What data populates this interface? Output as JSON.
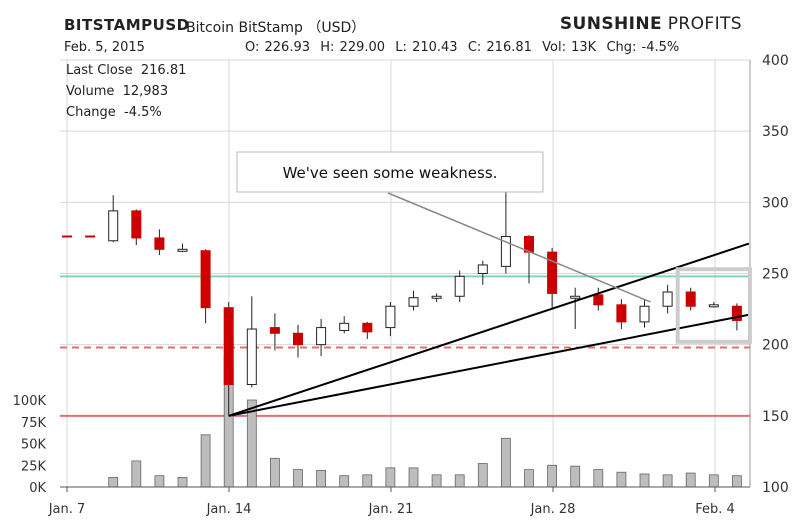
{
  "header": {
    "symbol": "BITSTAMPUSD",
    "description": "Bitcoin BitStamp （USD）",
    "brand_bold": "SUNSHINE",
    "brand_rest": "PROFITS",
    "date": "Feb. 5, 2015",
    "ohlc_line": "O: 226.93  H: 229.00  L: 210.43  C: 216.81  Vol: 13K  Chg: -4.5%"
  },
  "stats": {
    "last_close": "Last Close  216.81",
    "volume": "Volume  12,983",
    "change": "Change  -4.5%"
  },
  "annotation": "We've  seen  some  weakness.",
  "colors": {
    "up_fill": "#ffffff",
    "down_fill": "#cc0000",
    "candle_outline": "#222222",
    "volume_bar": "#bdbdbd",
    "resistance_green": "#7dd8b0",
    "support_red": "#e07070",
    "grid": "#d8d8d8",
    "highlight_box": "#cccccc"
  },
  "chart_data": {
    "type": "candlestick",
    "title": "BITSTAMPUSD Bitcoin BitStamp (USD)",
    "price_axis": {
      "ylim": [
        100,
        400
      ],
      "ticks": [
        100,
        150,
        200,
        250,
        300,
        350,
        400
      ]
    },
    "volume_axis": {
      "ylim": [
        0,
        125
      ],
      "ticks": [
        0,
        25,
        50,
        75,
        100
      ],
      "tick_labels": [
        "0K",
        "25K",
        "50K",
        "75K",
        "100K"
      ]
    },
    "x_tick_labels": [
      "Jan. 7",
      "Jan. 14",
      "Jan. 21",
      "Jan. 28",
      "Feb. 4"
    ],
    "grid": true,
    "candles": [
      {
        "date": "Jan. 8",
        "open": 276,
        "high": 276,
        "low": 276,
        "close": 276,
        "volume": 3
      },
      {
        "date": "Jan. 9",
        "open": 276,
        "high": 276,
        "low": 276,
        "close": 276,
        "volume": 3
      },
      {
        "date": "Jan. 10",
        "open": 273,
        "high": 305,
        "low": 272,
        "close": 294,
        "volume": 11
      },
      {
        "date": "Jan. 11",
        "open": 294,
        "high": 295,
        "low": 270,
        "close": 275,
        "volume": 30
      },
      {
        "date": "Jan. 12",
        "open": 275,
        "high": 281,
        "low": 263,
        "close": 267,
        "volume": 13
      },
      {
        "date": "Jan. 13",
        "open": 267,
        "high": 271,
        "low": 265,
        "close": 267,
        "volume": 11
      },
      {
        "date": "Jan. 14",
        "open": 266,
        "high": 267,
        "low": 215,
        "close": 226,
        "volume": 60
      },
      {
        "date": "Jan. 15",
        "open": 226,
        "high": 230,
        "low": 150,
        "close": 172,
        "volume": 150
      },
      {
        "date": "Jan. 16",
        "open": 172,
        "high": 234,
        "low": 170,
        "close": 211,
        "volume": 100
      },
      {
        "date": "Jan. 17",
        "open": 212,
        "high": 222,
        "low": 196,
        "close": 208,
        "volume": 33
      },
      {
        "date": "Jan. 18",
        "open": 208,
        "high": 214,
        "low": 191,
        "close": 200,
        "volume": 20
      },
      {
        "date": "Jan. 19",
        "open": 200,
        "high": 218,
        "low": 192,
        "close": 212,
        "volume": 19
      },
      {
        "date": "Jan. 20",
        "open": 210,
        "high": 220,
        "low": 208,
        "close": 215,
        "volume": 13
      },
      {
        "date": "Jan. 21",
        "open": 215,
        "high": 216,
        "low": 204,
        "close": 209,
        "volume": 14
      },
      {
        "date": "Jan. 22",
        "open": 212,
        "high": 230,
        "low": 206,
        "close": 227,
        "volume": 22
      },
      {
        "date": "Jan. 23",
        "open": 227,
        "high": 238,
        "low": 224,
        "close": 233,
        "volume": 22
      },
      {
        "date": "Jan. 24",
        "open": 233,
        "high": 236,
        "low": 230,
        "close": 234,
        "volume": 14
      },
      {
        "date": "Jan. 25",
        "open": 234,
        "high": 252,
        "low": 230,
        "close": 248,
        "volume": 14
      },
      {
        "date": "Jan. 26",
        "open": 250,
        "high": 259,
        "low": 242,
        "close": 256,
        "volume": 27
      },
      {
        "date": "Jan. 27",
        "open": 255,
        "high": 307,
        "low": 250,
        "close": 276,
        "volume": 56
      },
      {
        "date": "Jan. 28",
        "open": 276,
        "high": 277,
        "low": 243,
        "close": 265,
        "volume": 20
      },
      {
        "date": "Jan. 29",
        "open": 265,
        "high": 268,
        "low": 226,
        "close": 236,
        "volume": 25
      },
      {
        "date": "Jan. 30",
        "open": 234,
        "high": 240,
        "low": 211,
        "close": 234,
        "volume": 24
      },
      {
        "date": "Jan. 31",
        "open": 235,
        "high": 240,
        "low": 224,
        "close": 228,
        "volume": 20
      },
      {
        "date": "Feb. 1",
        "open": 228,
        "high": 232,
        "low": 211,
        "close": 216,
        "volume": 17
      },
      {
        "date": "Feb. 2",
        "open": 216,
        "high": 232,
        "low": 212,
        "close": 227,
        "volume": 15
      },
      {
        "date": "Feb. 3",
        "open": 227,
        "high": 242,
        "low": 222,
        "close": 237,
        "volume": 14
      },
      {
        "date": "Feb. 4",
        "open": 237,
        "high": 240,
        "low": 224,
        "close": 227,
        "volume": 16
      },
      {
        "date": "Feb. 5",
        "open": 228,
        "high": 230,
        "low": 226,
        "close": 228,
        "volume": 14
      },
      {
        "date": "Feb. 6",
        "open": 227,
        "high": 229,
        "low": 210,
        "close": 217,
        "volume": 13
      }
    ],
    "horizontal_lines": [
      {
        "price": 248,
        "style": "solid",
        "color": "green"
      },
      {
        "price": 198,
        "style": "dashed",
        "color": "red"
      },
      {
        "price": 150,
        "style": "solid",
        "color": "red"
      }
    ],
    "trend_lines": [
      {
        "from": {
          "date": "Jan. 15",
          "price": 150
        },
        "to": {
          "date": "Feb. 6",
          "price": 271
        }
      },
      {
        "from": {
          "date": "Jan. 15",
          "price": 150
        },
        "to": {
          "date": "Feb. 6",
          "price": 221
        }
      }
    ],
    "annotation_pointer": {
      "date": "Feb. 2",
      "price": 230
    },
    "highlight_range": {
      "from_date": "Feb. 4",
      "to_date": "Feb. 6",
      "price_range": [
        202,
        253
      ]
    }
  }
}
